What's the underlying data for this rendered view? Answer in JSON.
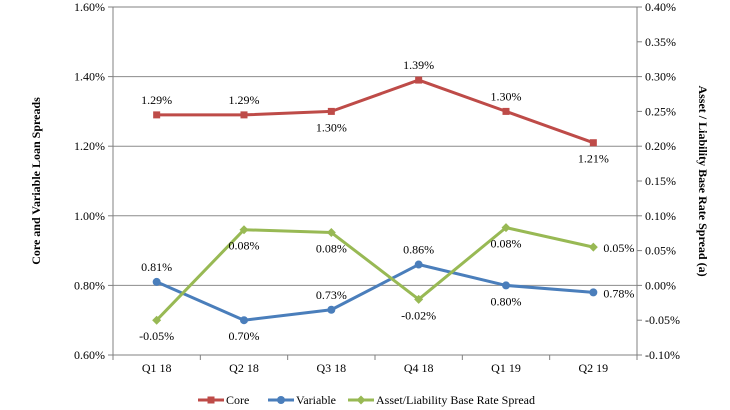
{
  "chart_data": {
    "type": "line",
    "categories": [
      "Q1 18",
      "Q2 18",
      "Q3 18",
      "Q4 18",
      "Q1 19",
      "Q2 19"
    ],
    "ylabel": "Core and Variable Loan Spreads",
    "y2label": "Asset / Liability Base Rate Spread (a)",
    "ylim": [
      0.6,
      1.6
    ],
    "y2lim": [
      -0.1,
      0.4
    ],
    "yticks": [
      "0.60%",
      "0.80%",
      "1.00%",
      "1.20%",
      "1.40%",
      "1.60%"
    ],
    "y2ticks": [
      "-0.10%",
      "-0.05%",
      "0.00%",
      "0.05%",
      "0.10%",
      "0.15%",
      "0.20%",
      "0.25%",
      "0.30%",
      "0.35%",
      "0.40%"
    ],
    "grid": true,
    "legend_position": "bottom",
    "series": [
      {
        "name": "Core",
        "axis": "left",
        "color": "#be4b48",
        "marker": "square",
        "values": [
          1.29,
          1.29,
          1.3,
          1.39,
          1.3,
          1.21
        ],
        "labels": [
          "1.29%",
          "1.29%",
          "1.30%",
          "1.39%",
          "1.30%",
          "1.21%"
        ]
      },
      {
        "name": "Variable",
        "axis": "left",
        "color": "#4a7ebb",
        "marker": "circle",
        "values": [
          0.81,
          0.7,
          0.73,
          0.86,
          0.8,
          0.78
        ],
        "labels": [
          "0.81%",
          "0.70%",
          "0.73%",
          "0.86%",
          "0.80%",
          "0.78%"
        ]
      },
      {
        "name": "Asset/Liability Base Rate Spread",
        "axis": "right",
        "color": "#98b954",
        "marker": "diamond",
        "values": [
          -0.05,
          0.08,
          0.076,
          -0.02,
          0.083,
          0.055
        ],
        "labels": [
          "-0.05%",
          "0.08%",
          "0.08%",
          "-0.02%",
          "0.08%",
          "0.05%"
        ]
      }
    ]
  }
}
